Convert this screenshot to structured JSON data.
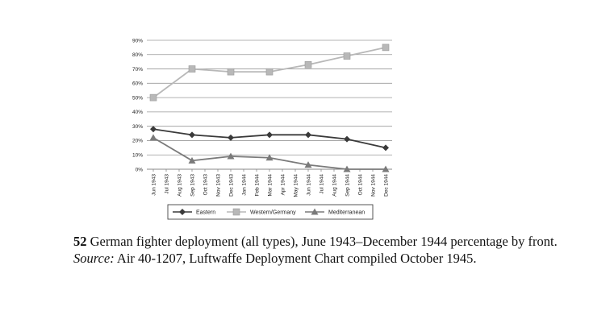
{
  "chart_data": {
    "type": "line",
    "categories": [
      "Jun 1943",
      "Jul 1943",
      "Aug 1943",
      "Sep 1943",
      "Oct 1943",
      "Nov 1943",
      "Dec 1943",
      "Jan 1944",
      "Feb 1944",
      "Mar 1944",
      "Apr 1944",
      "May 1944",
      "Jun 1944",
      "Jul 1944",
      "Aug 1944",
      "Sep 1944",
      "Oct 1944",
      "Nov 1944",
      "Dec 1944"
    ],
    "series": [
      {
        "name": "Eastern",
        "marker": "diamond",
        "color": "#3a3a3a",
        "points": [
          {
            "x": "Jun 1943",
            "y": 28
          },
          {
            "x": "Sep 1943",
            "y": 24
          },
          {
            "x": "Dec 1943",
            "y": 22
          },
          {
            "x": "Mar 1944",
            "y": 24
          },
          {
            "x": "Jun 1944",
            "y": 24
          },
          {
            "x": "Sep 1944",
            "y": 21
          },
          {
            "x": "Dec 1944",
            "y": 15
          }
        ]
      },
      {
        "name": "Western/Germany",
        "marker": "square",
        "color": "#b8b8b8",
        "points": [
          {
            "x": "Jun 1943",
            "y": 50
          },
          {
            "x": "Sep 1943",
            "y": 70
          },
          {
            "x": "Dec 1943",
            "y": 68
          },
          {
            "x": "Mar 1944",
            "y": 68
          },
          {
            "x": "Jun 1944",
            "y": 73
          },
          {
            "x": "Sep 1944",
            "y": 79
          },
          {
            "x": "Dec 1944",
            "y": 85
          }
        ]
      },
      {
        "name": "Mediterranean",
        "marker": "triangle",
        "color": "#7a7a7a",
        "points": [
          {
            "x": "Jun 1943",
            "y": 22
          },
          {
            "x": "Sep 1943",
            "y": 6
          },
          {
            "x": "Dec 1943",
            "y": 9
          },
          {
            "x": "Mar 1944",
            "y": 8
          },
          {
            "x": "Jun 1944",
            "y": 3
          },
          {
            "x": "Sep 1944",
            "y": 0
          },
          {
            "x": "Dec 1944",
            "y": 0
          }
        ]
      }
    ],
    "y_ticks": [
      "0%",
      "10%",
      "20%",
      "30%",
      "40%",
      "50%",
      "60%",
      "70%",
      "80%",
      "90%"
    ],
    "ylim": [
      0,
      90
    ],
    "grid": true,
    "legend_position": "bottom",
    "title": "",
    "xlabel": "",
    "ylabel": ""
  },
  "caption": {
    "number": "52",
    "text": "German fighter deployment (all types), June 1943–December 1944 percentage by front.",
    "source_label": "Source:",
    "source_text": "Air 40-1207, Luftwaffe Deployment Chart compiled October 1945."
  }
}
